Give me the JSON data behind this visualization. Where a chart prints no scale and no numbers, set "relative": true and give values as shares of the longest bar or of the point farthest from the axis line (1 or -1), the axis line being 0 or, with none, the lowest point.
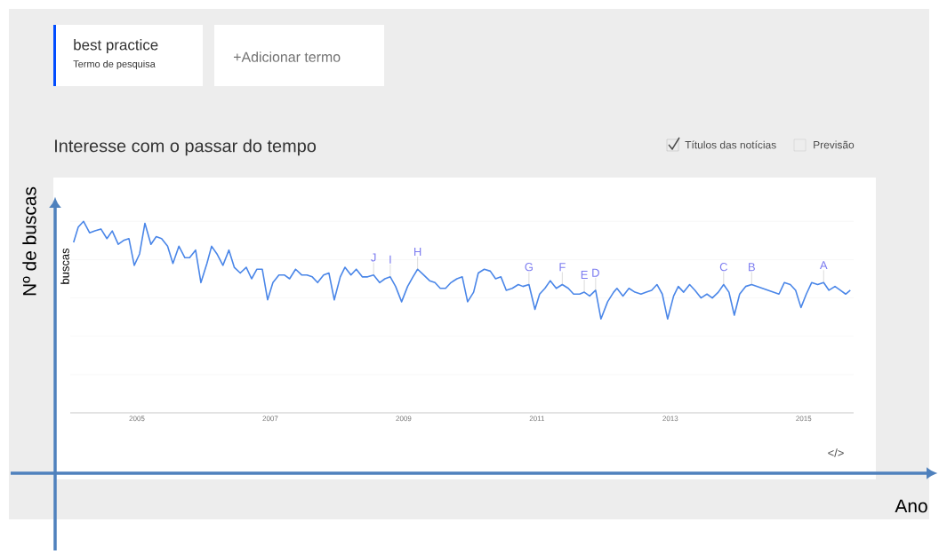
{
  "chart_data": {
    "type": "line",
    "title": "Interesse com o passar do tempo",
    "xlabel": "Ano",
    "ylabel": "Nº de buscas",
    "relative": true,
    "color": "#4a86e8",
    "line_style": "solid",
    "grid": "y",
    "xlim": [
      2004,
      2015.75
    ],
    "xticks": [
      2005,
      2007,
      2009,
      2011,
      2013,
      2015
    ],
    "x": [
      2004.05,
      2004.12,
      2004.2,
      2004.29,
      2004.37,
      2004.46,
      2004.55,
      2004.63,
      2004.72,
      2004.8,
      2004.88,
      2004.96,
      2005.04,
      2005.12,
      2005.21,
      2005.29,
      2005.37,
      2005.46,
      2005.54,
      2005.63,
      2005.72,
      2005.79,
      2005.88,
      2005.96,
      2006.05,
      2006.12,
      2006.2,
      2006.29,
      2006.38,
      2006.46,
      2006.55,
      2006.64,
      2006.72,
      2006.8,
      2006.88,
      2006.96,
      2007.04,
      2007.13,
      2007.21,
      2007.29,
      2007.38,
      2007.47,
      2007.55,
      2007.63,
      2007.71,
      2007.8,
      2007.88,
      2007.96,
      2008.05,
      2008.12,
      2008.21,
      2008.29,
      2008.38,
      2008.46,
      2008.55,
      2008.64,
      2008.72,
      2008.8,
      2008.88,
      2008.97,
      2009.06,
      2009.14,
      2009.21,
      2009.3,
      2009.39,
      2009.47,
      2009.55,
      2009.63,
      2009.71,
      2009.8,
      2009.88,
      2009.96,
      2010.05,
      2010.12,
      2010.21,
      2010.3,
      2010.38,
      2010.46,
      2010.54,
      2010.63,
      2010.72,
      2010.79,
      2010.88,
      2010.97,
      2011.04,
      2011.12,
      2011.2,
      2011.29,
      2011.38,
      2011.47,
      2011.55,
      2011.64,
      2011.71,
      2011.79,
      2011.88,
      2011.96,
      2012.06,
      2012.15,
      2012.2,
      2012.29,
      2012.38,
      2012.47,
      2012.56,
      2012.64,
      2012.72,
      2012.8,
      2012.88,
      2012.96,
      2013.05,
      2013.12,
      2013.2,
      2013.29,
      2013.37,
      2013.46,
      2013.55,
      2013.63,
      2013.72,
      2013.8,
      2013.88,
      2013.96,
      2014.04,
      2014.13,
      2014.22,
      2014.63,
      2014.71,
      2014.8,
      2014.88,
      2014.96,
      2015.04,
      2015.12,
      2015.21,
      2015.3,
      2015.38,
      2015.47,
      2015.55,
      2015.63,
      2015.7
    ],
    "values": [
      0.89,
      0.97,
      1.0,
      0.94,
      0.95,
      0.96,
      0.91,
      0.95,
      0.88,
      0.9,
      0.91,
      0.77,
      0.83,
      0.99,
      0.88,
      0.92,
      0.91,
      0.87,
      0.78,
      0.87,
      0.81,
      0.81,
      0.85,
      0.68,
      0.78,
      0.87,
      0.83,
      0.77,
      0.85,
      0.76,
      0.73,
      0.76,
      0.7,
      0.75,
      0.75,
      0.59,
      0.68,
      0.72,
      0.72,
      0.7,
      0.75,
      0.72,
      0.72,
      0.71,
      0.68,
      0.72,
      0.73,
      0.59,
      0.71,
      0.76,
      0.72,
      0.75,
      0.71,
      0.71,
      0.72,
      0.68,
      0.7,
      0.71,
      0.66,
      0.58,
      0.66,
      0.71,
      0.75,
      0.72,
      0.69,
      0.68,
      0.65,
      0.65,
      0.68,
      0.7,
      0.71,
      0.58,
      0.63,
      0.73,
      0.75,
      0.74,
      0.7,
      0.71,
      0.64,
      0.65,
      0.67,
      0.66,
      0.67,
      0.54,
      0.62,
      0.65,
      0.69,
      0.65,
      0.67,
      0.65,
      0.62,
      0.62,
      0.63,
      0.61,
      0.64,
      0.49,
      0.58,
      0.63,
      0.65,
      0.61,
      0.65,
      0.63,
      0.62,
      0.63,
      0.64,
      0.67,
      0.62,
      0.49,
      0.61,
      0.66,
      0.63,
      0.67,
      0.64,
      0.6,
      0.62,
      0.6,
      0.63,
      0.67,
      0.63,
      0.51,
      0.62,
      0.66,
      0.67,
      0.62,
      0.68,
      0.67,
      0.64,
      0.55,
      0.62,
      0.68,
      0.67,
      0.68,
      0.64,
      0.66,
      0.64,
      0.62,
      0.64
    ],
    "annotations": [
      "best practice",
      "Termo de pesquisa",
      "+Adicionar termo",
      "Títulos das notícias",
      "Previsão",
      "buscas",
      "</>",
      {
        "text": "J",
        "x": 2008.55,
        "y": 0.72
      },
      {
        "text": "I",
        "x": 2008.8,
        "y": 0.71
      },
      {
        "text": "H",
        "x": 2009.21,
        "y": 0.75
      },
      {
        "text": "G",
        "x": 2010.88,
        "y": 0.67
      },
      {
        "text": "F",
        "x": 2011.38,
        "y": 0.67
      },
      {
        "text": "E",
        "x": 2011.71,
        "y": 0.63
      },
      {
        "text": "D",
        "x": 2011.88,
        "y": 0.64
      },
      {
        "text": "C",
        "x": 2013.8,
        "y": 0.67
      },
      {
        "text": "B",
        "x": 2014.22,
        "y": 0.67
      },
      {
        "text": "A",
        "x": 2015.3,
        "y": 0.68
      }
    ]
  }
}
